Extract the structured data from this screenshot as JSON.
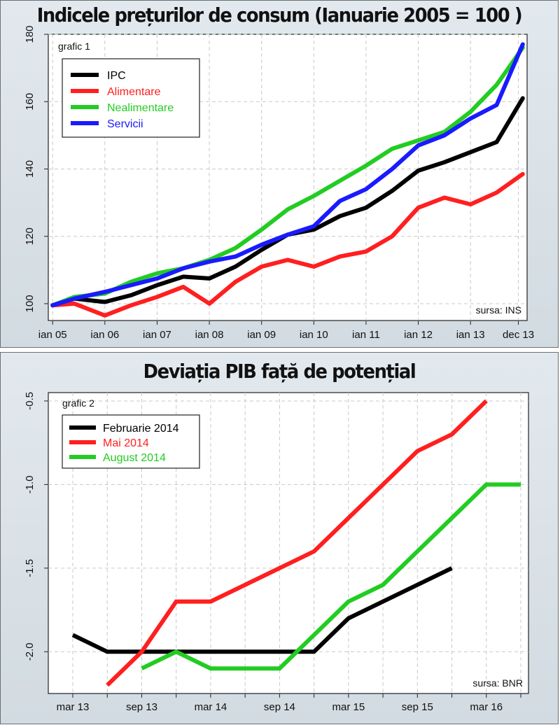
{
  "chart_data": [
    {
      "type": "line",
      "title": "Indicele prețurilor de consum (Ianuarie 2005 = 100 )",
      "panel_label": "grafic 1",
      "source": "sursa: INS",
      "xlabel": "",
      "ylabel": "",
      "x_tick_labels": [
        "ian 05",
        "ian 06",
        "ian 07",
        "ian 08",
        "ian 09",
        "ian 10",
        "ian 11",
        "ian 12",
        "ian 13",
        "dec 13"
      ],
      "x_tick_dates": [
        "2005-01",
        "2006-01",
        "2007-01",
        "2008-01",
        "2009-01",
        "2010-01",
        "2011-01",
        "2012-01",
        "2013-01",
        "2013-12"
      ],
      "xlim": [
        "2004-12",
        "2014-02"
      ],
      "ylim": [
        95,
        180
      ],
      "y_ticks": [
        100,
        120,
        140,
        160,
        180
      ],
      "grid": true,
      "legend_position": "top-left",
      "series": [
        {
          "name": "IPC",
          "color": "#000000",
          "x": [
            "2005-01",
            "2005-06",
            "2006-01",
            "2006-07",
            "2007-01",
            "2007-07",
            "2008-01",
            "2008-07",
            "2009-01",
            "2009-07",
            "2010-01",
            "2010-07",
            "2011-01",
            "2011-07",
            "2012-01",
            "2012-07",
            "2013-01",
            "2013-07",
            "2014-01"
          ],
          "y": [
            99.5,
            101.5,
            100.5,
            102.5,
            105.5,
            108,
            107.5,
            111,
            116,
            120.5,
            122,
            126,
            128.5,
            133.5,
            139.5,
            142,
            145,
            148,
            161
          ]
        },
        {
          "name": "Alimentare",
          "color": "#ff1f1f",
          "x": [
            "2005-01",
            "2005-06",
            "2006-01",
            "2006-07",
            "2007-01",
            "2007-07",
            "2008-01",
            "2008-07",
            "2009-01",
            "2009-07",
            "2010-01",
            "2010-07",
            "2011-01",
            "2011-07",
            "2012-01",
            "2012-07",
            "2013-01",
            "2013-07",
            "2014-01"
          ],
          "y": [
            99.5,
            100,
            96.5,
            99.5,
            102,
            105,
            100,
            106.5,
            111,
            113,
            111,
            114,
            115.5,
            120,
            128.5,
            131.5,
            129.5,
            133,
            138.5
          ]
        },
        {
          "name": "Nealimentare",
          "color": "#22cc22",
          "x": [
            "2005-01",
            "2005-06",
            "2006-01",
            "2006-07",
            "2007-01",
            "2007-07",
            "2008-01",
            "2008-07",
            "2009-01",
            "2009-07",
            "2010-01",
            "2010-07",
            "2011-01",
            "2011-07",
            "2012-01",
            "2012-07",
            "2013-01",
            "2013-07",
            "2014-01"
          ],
          "y": [
            99.5,
            102,
            103,
            106.5,
            109,
            110.5,
            113,
            116.5,
            122,
            128,
            132,
            136.5,
            141,
            146,
            148.5,
            151,
            157,
            165,
            176
          ]
        },
        {
          "name": "Servicii",
          "color": "#1a1aff",
          "x": [
            "2005-01",
            "2005-06",
            "2006-01",
            "2006-07",
            "2007-01",
            "2007-07",
            "2008-01",
            "2008-07",
            "2009-01",
            "2009-07",
            "2010-01",
            "2010-07",
            "2011-01",
            "2011-07",
            "2012-01",
            "2012-07",
            "2013-01",
            "2013-07",
            "2014-01"
          ],
          "y": [
            99.5,
            101.5,
            103.5,
            105.5,
            107.5,
            110.5,
            112.5,
            114,
            117.5,
            120.5,
            123,
            130.5,
            134,
            140,
            147,
            150,
            155,
            159,
            177
          ]
        }
      ]
    },
    {
      "type": "line",
      "title": "Deviația PIB față de potențial",
      "panel_label": "grafic 2",
      "source": "sursa: BNR",
      "xlabel": "",
      "ylabel": "",
      "x_tick_labels": [
        "mar 13",
        "sep 13",
        "mar 14",
        "sep 14",
        "mar 15",
        "sep 15",
        "mar 16"
      ],
      "categories": [
        "mar 13",
        "iun 13",
        "sep 13",
        "dec 13",
        "mar 14",
        "iun 14",
        "sep 14",
        "dec 14",
        "mar 15",
        "iun 15",
        "sep 15",
        "dec 15",
        "mar 16",
        "iun 16"
      ],
      "ylim": [
        -2.25,
        -0.45
      ],
      "y_ticks": [
        -2.0,
        -1.5,
        -1.0,
        -0.5
      ],
      "grid": true,
      "legend_position": "top-left",
      "series": [
        {
          "name": "Februarie 2014",
          "color": "#000000",
          "values": [
            -1.9,
            -2.0,
            -2.0,
            -2.0,
            -2.0,
            -2.0,
            -2.0,
            -2.0,
            -1.8,
            -1.7,
            -1.6,
            -1.5,
            null,
            null
          ]
        },
        {
          "name": "Mai 2014",
          "color": "#ff1f1f",
          "values": [
            null,
            -2.2,
            -2.0,
            -1.7,
            -1.7,
            -1.6,
            -1.5,
            -1.4,
            -1.2,
            -1.0,
            -0.8,
            -0.7,
            -0.5,
            null
          ]
        },
        {
          "name": "August 2014",
          "color": "#22cc22",
          "values": [
            null,
            null,
            -2.1,
            -2.0,
            -2.1,
            -2.1,
            -2.1,
            -1.9,
            -1.7,
            -1.6,
            -1.4,
            -1.2,
            -1.0,
            -1.0
          ]
        }
      ]
    }
  ]
}
